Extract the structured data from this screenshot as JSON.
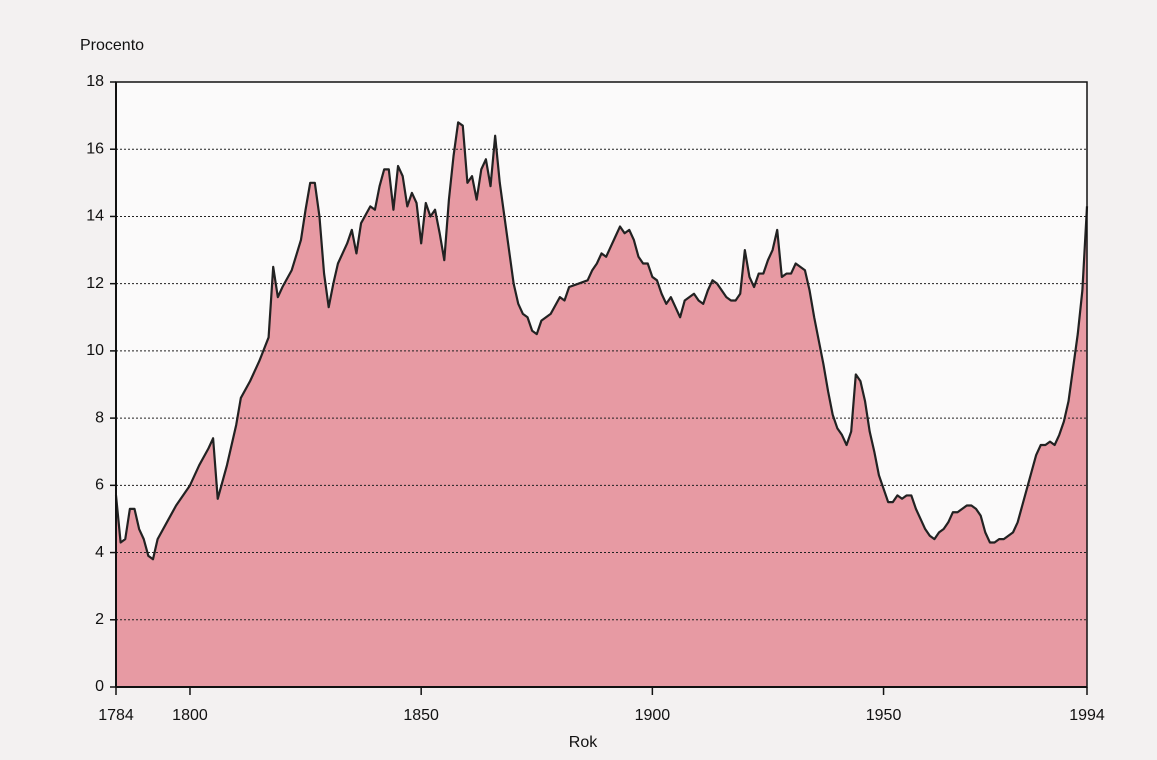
{
  "chart_data": {
    "type": "area",
    "y_axis_label": "Procento",
    "x_axis_label": "Rok",
    "x": [
      1784,
      1785,
      1786,
      1787,
      1788,
      1789,
      1790,
      1791,
      1792,
      1793,
      1795,
      1797,
      1800,
      1802,
      1804,
      1805,
      1806,
      1808,
      1810,
      1811,
      1813,
      1815,
      1817,
      1818,
      1819,
      1820,
      1822,
      1824,
      1825,
      1826,
      1827,
      1828,
      1829,
      1830,
      1831,
      1832,
      1834,
      1835,
      1836,
      1837,
      1839,
      1840,
      1841,
      1842,
      1843,
      1844,
      1845,
      1846,
      1847,
      1848,
      1849,
      1850,
      1851,
      1852,
      1853,
      1854,
      1855,
      1856,
      1857,
      1858,
      1859,
      1860,
      1861,
      1862,
      1863,
      1864,
      1865,
      1866,
      1867,
      1868,
      1869,
      1870,
      1871,
      1872,
      1873,
      1874,
      1875,
      1876,
      1878,
      1880,
      1881,
      1882,
      1884,
      1886,
      1887,
      1888,
      1889,
      1890,
      1891,
      1892,
      1893,
      1894,
      1895,
      1896,
      1897,
      1898,
      1899,
      1900,
      1901,
      1902,
      1903,
      1904,
      1905,
      1906,
      1907,
      1908,
      1909,
      1910,
      1911,
      1912,
      1913,
      1914,
      1915,
      1916,
      1917,
      1918,
      1919,
      1920,
      1921,
      1922,
      1923,
      1924,
      1925,
      1926,
      1927,
      1928,
      1929,
      1930,
      1931,
      1932,
      1933,
      1934,
      1935,
      1936,
      1937,
      1938,
      1939,
      1940,
      1941,
      1942,
      1943,
      1944,
      1945,
      1946,
      1947,
      1948,
      1949,
      1950,
      1951,
      1952,
      1953,
      1954,
      1955,
      1956,
      1957,
      1958,
      1959,
      1960,
      1961,
      1962,
      1963,
      1964,
      1965,
      1966,
      1967,
      1968,
      1969,
      1970,
      1971,
      1972,
      1973,
      1974,
      1975,
      1976,
      1977,
      1978,
      1979,
      1980,
      1981,
      1982,
      1983,
      1984,
      1985,
      1986,
      1987,
      1988,
      1989,
      1990,
      1991,
      1992,
      1993,
      1994
    ],
    "values": [
      5.7,
      4.3,
      4.4,
      5.3,
      5.3,
      4.7,
      4.4,
      3.9,
      3.8,
      4.4,
      4.9,
      5.4,
      6.0,
      6.6,
      7.1,
      7.4,
      5.6,
      6.6,
      7.8,
      8.6,
      9.1,
      9.7,
      10.4,
      12.5,
      11.6,
      11.9,
      12.4,
      13.3,
      14.2,
      15.0,
      15.0,
      14.0,
      12.3,
      11.3,
      12.0,
      12.6,
      13.2,
      13.6,
      12.9,
      13.8,
      14.3,
      14.2,
      14.9,
      15.4,
      15.4,
      14.2,
      15.5,
      15.2,
      14.3,
      14.7,
      14.4,
      13.2,
      14.4,
      14.0,
      14.2,
      13.5,
      12.7,
      14.5,
      15.8,
      16.8,
      16.7,
      15.0,
      15.2,
      14.5,
      15.4,
      15.7,
      14.9,
      16.4,
      15.0,
      14.0,
      13.0,
      12.0,
      11.4,
      11.1,
      11.0,
      10.6,
      10.5,
      10.9,
      11.1,
      11.6,
      11.5,
      11.9,
      12.0,
      12.1,
      12.4,
      12.6,
      12.9,
      12.8,
      13.1,
      13.4,
      13.7,
      13.5,
      13.6,
      13.3,
      12.8,
      12.6,
      12.6,
      12.2,
      12.1,
      11.7,
      11.4,
      11.6,
      11.3,
      11.0,
      11.5,
      11.6,
      11.7,
      11.5,
      11.4,
      11.8,
      12.1,
      12.0,
      11.8,
      11.6,
      11.5,
      11.5,
      11.7,
      13.0,
      12.2,
      11.9,
      12.3,
      12.3,
      12.7,
      13.0,
      13.6,
      12.2,
      12.3,
      12.3,
      12.6,
      12.5,
      12.4,
      11.8,
      11.0,
      10.3,
      9.6,
      8.8,
      8.1,
      7.7,
      7.5,
      7.2,
      7.6,
      9.3,
      9.1,
      8.5,
      7.6,
      7.0,
      6.3,
      5.9,
      5.5,
      5.5,
      5.7,
      5.6,
      5.7,
      5.7,
      5.3,
      5.0,
      4.7,
      4.5,
      4.4,
      4.6,
      4.7,
      4.9,
      5.2,
      5.2,
      5.3,
      5.4,
      5.4,
      5.3,
      5.1,
      4.6,
      4.3,
      4.3,
      4.4,
      4.4,
      4.5,
      4.6,
      4.9,
      5.4,
      5.9,
      6.4,
      6.9,
      7.2,
      7.2,
      7.3,
      7.2,
      7.5,
      7.9,
      8.5,
      9.5,
      10.5,
      11.8,
      14.3
    ],
    "color": "#e79aa3",
    "line_color": "#222222",
    "xlim": [
      1784,
      1994
    ],
    "xticks": [
      1784,
      1800,
      1850,
      1900,
      1950,
      1994
    ],
    "ylim": [
      0,
      18
    ],
    "yticks": [
      0,
      2,
      4,
      6,
      8,
      10,
      12,
      14,
      16,
      18
    ],
    "grid": true
  }
}
